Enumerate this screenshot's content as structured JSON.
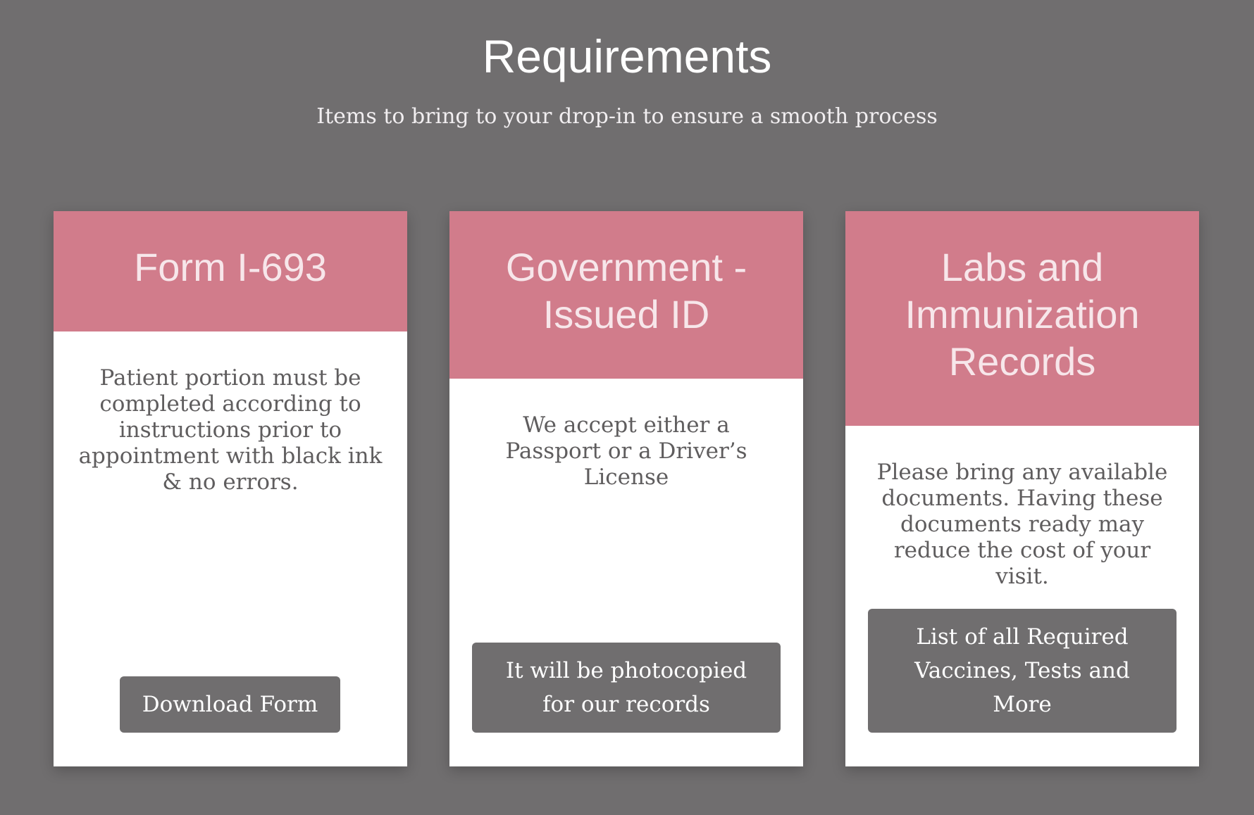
{
  "header": {
    "title": "Requirements",
    "subtitle": "Items to bring to your drop-in to ensure a smooth process"
  },
  "cards": [
    {
      "title": "Form I-693",
      "text": "Patient portion must be completed according to instructions prior to appointment with black ink & no errors.",
      "button_label": "Download Form"
    },
    {
      "title": "Government - Issued ID",
      "text": "We accept either a Passport or a Driver’s License",
      "button_label": "It will be photocopied for our records"
    },
    {
      "title": "Labs and Immunization Records",
      "text": "Please bring any available documents. Having these documents ready may reduce the cost of your visit.",
      "button_label": "List of all Required Vaccines, Tests and More"
    }
  ],
  "colors": {
    "background": "#706e6f",
    "card_header": "#d17c8b",
    "card_header_text": "#f7e6ea",
    "card_body": "#ffffff",
    "body_text": "#5f5d5e",
    "button": "#706e6f"
  }
}
